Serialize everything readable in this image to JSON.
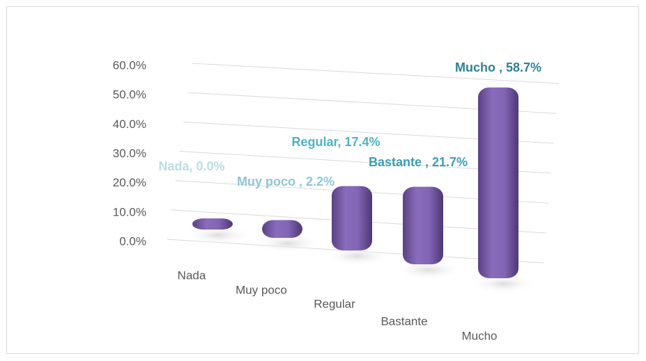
{
  "chart_data": {
    "type": "bar3d",
    "categories": [
      "Nada",
      "Muy poco",
      "Regular",
      "Bastante",
      "Mucho"
    ],
    "values": [
      0,
      2.2,
      17.4,
      21.7,
      58.7
    ],
    "value_labels": [
      "Nada, 0.0%",
      "Muy poco , 2.2%",
      "Regular, 17.4%",
      "Bastante , 21.7%",
      "Mucho , 58.7%"
    ],
    "label_colors": [
      "#bcdbe6",
      "#8ec6d9",
      "#4eb2c8",
      "#3c9db3",
      "#2f8194"
    ],
    "color": "#7b5ea7",
    "ylim": [
      0,
      60
    ],
    "yticks": [
      {
        "value": 0,
        "label": "0.0%"
      },
      {
        "value": 10,
        "label": "10.0%"
      },
      {
        "value": 20,
        "label": "20.0%"
      },
      {
        "value": 30,
        "label": "30.0%"
      },
      {
        "value": 40,
        "label": "40.0%"
      },
      {
        "value": 50,
        "label": "50.0%"
      },
      {
        "value": 60,
        "label": "60.0%"
      }
    ],
    "grid": true
  }
}
